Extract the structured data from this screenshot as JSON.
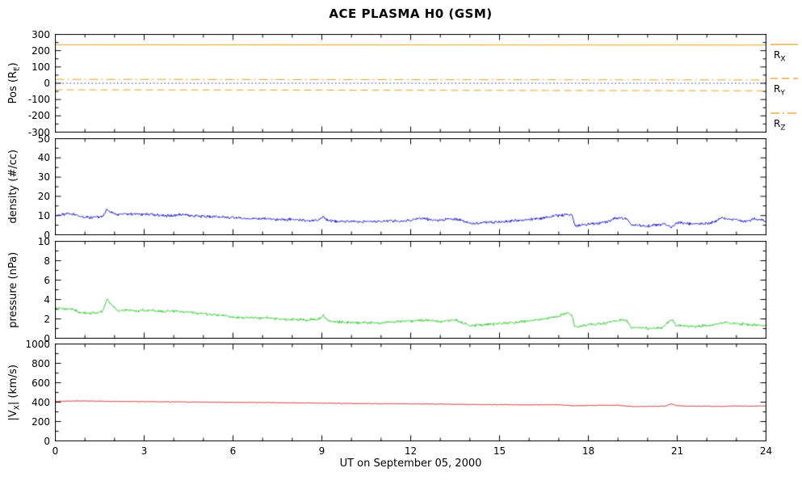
{
  "colors": {
    "background": "#FFFFFF",
    "axis": "#000000"
  },
  "chart_data": {
    "type": "line",
    "title": "ACE PLASMA H0 (GSM)",
    "x_axis": {
      "label": "UT on September 05, 2000",
      "lim": [
        0,
        24
      ],
      "ticks": [
        0,
        3,
        6,
        9,
        12,
        15,
        18,
        21,
        24
      ],
      "minor_step": 1
    },
    "legend": {
      "items": [
        {
          "label": {
            "main": "R",
            "sub": "X"
          },
          "color": "#E8A020",
          "dash": "none"
        },
        {
          "label": {
            "main": "R",
            "sub": "Y"
          },
          "color": "#E8A020",
          "dash": "9,5"
        },
        {
          "label": {
            "main": "R",
            "sub": "Z"
          },
          "color": "#E8A020",
          "dash": "11,4,2,4"
        }
      ]
    },
    "panels": [
      {
        "name": "position",
        "ylabel": {
          "pre": "Pos (R",
          "sub": "E",
          "post": ")"
        },
        "ylim": [
          -300,
          300
        ],
        "yticks": [
          -300,
          -200,
          -100,
          0,
          100,
          200,
          300
        ],
        "yminor_step": 50,
        "series": [
          {
            "name": "zero-line",
            "color": "#2222CC",
            "dash": [
              1.5,
              3
            ],
            "noise": 0,
            "points": [
              [
                0,
                0
              ],
              [
                24,
                0
              ]
            ]
          },
          {
            "name": "R_X",
            "color": "#E8A020",
            "dash": [],
            "noise": 0,
            "points": [
              [
                0,
                236
              ],
              [
                24,
                234
              ]
            ]
          },
          {
            "name": "R_Y",
            "color": "#E8A020",
            "dash": [
              9,
              5
            ],
            "noise": 0,
            "points": [
              [
                0,
                -40
              ],
              [
                24,
                -46
              ]
            ]
          },
          {
            "name": "R_Z",
            "color": "#E8A020",
            "dash": [
              11,
              4,
              2,
              4
            ],
            "noise": 0,
            "points": [
              [
                0,
                24
              ],
              [
                24,
                20
              ]
            ]
          }
        ]
      },
      {
        "name": "density",
        "ylabel": {
          "pre": "density (#/cc)",
          "sub": "",
          "post": ""
        },
        "ylim": [
          0,
          50
        ],
        "yticks": [
          0,
          10,
          20,
          30,
          40,
          50
        ],
        "yminor_step": 5,
        "series": [
          {
            "name": "proton-density",
            "color": "#2222CC",
            "dash": [],
            "noise": 0.9,
            "points": [
              [
                0,
                10
              ],
              [
                0.3,
                10.5
              ],
              [
                0.6,
                11
              ],
              [
                0.8,
                9.5
              ],
              [
                1.0,
                9
              ],
              [
                1.3,
                9
              ],
              [
                1.6,
                9.5
              ],
              [
                1.75,
                13.5
              ],
              [
                1.9,
                11.5
              ],
              [
                2.1,
                10.5
              ],
              [
                2.4,
                11
              ],
              [
                2.7,
                10.5
              ],
              [
                3.0,
                11
              ],
              [
                3.3,
                10.5
              ],
              [
                3.6,
                10
              ],
              [
                4.0,
                10
              ],
              [
                4.3,
                10.5
              ],
              [
                4.6,
                10
              ],
              [
                5.0,
                9.5
              ],
              [
                5.4,
                9.5
              ],
              [
                5.7,
                9
              ],
              [
                6.0,
                9
              ],
              [
                6.3,
                8.5
              ],
              [
                6.7,
                8.5
              ],
              [
                7.0,
                8.5
              ],
              [
                7.4,
                8
              ],
              [
                7.7,
                8
              ],
              [
                8.0,
                8
              ],
              [
                8.4,
                7.5
              ],
              [
                8.7,
                7.5
              ],
              [
                8.95,
                8
              ],
              [
                9.05,
                9.5
              ],
              [
                9.2,
                7.5
              ],
              [
                9.5,
                7
              ],
              [
                9.8,
                7
              ],
              [
                10.0,
                7
              ],
              [
                10.3,
                6.5
              ],
              [
                10.6,
                7
              ],
              [
                11.0,
                7
              ],
              [
                11.3,
                7.5
              ],
              [
                11.6,
                7
              ],
              [
                12.0,
                7.5
              ],
              [
                12.3,
                8.5
              ],
              [
                12.6,
                8
              ],
              [
                13.0,
                7.5
              ],
              [
                13.3,
                8.5
              ],
              [
                13.6,
                8
              ],
              [
                14.0,
                6
              ],
              [
                14.3,
                6
              ],
              [
                14.6,
                6.5
              ],
              [
                15.0,
                6.5
              ],
              [
                15.3,
                7
              ],
              [
                15.6,
                7.5
              ],
              [
                16.0,
                8
              ],
              [
                16.3,
                8.5
              ],
              [
                16.6,
                9
              ],
              [
                17.0,
                10
              ],
              [
                17.3,
                10.5
              ],
              [
                17.45,
                10
              ],
              [
                17.55,
                4.5
              ],
              [
                17.7,
                5
              ],
              [
                18.0,
                5.5
              ],
              [
                18.3,
                6
              ],
              [
                18.6,
                6.5
              ],
              [
                18.9,
                8.5
              ],
              [
                19.1,
                9
              ],
              [
                19.3,
                8.5
              ],
              [
                19.45,
                5
              ],
              [
                19.7,
                5
              ],
              [
                20.0,
                4.5
              ],
              [
                20.3,
                5
              ],
              [
                20.6,
                5.5
              ],
              [
                20.8,
                4
              ],
              [
                21.0,
                6.5
              ],
              [
                21.3,
                6
              ],
              [
                21.6,
                5.5
              ],
              [
                22.0,
                6
              ],
              [
                22.3,
                7
              ],
              [
                22.5,
                9
              ],
              [
                22.8,
                8
              ],
              [
                23.0,
                8
              ],
              [
                23.3,
                7
              ],
              [
                23.6,
                8.5
              ],
              [
                24,
                7
              ]
            ]
          }
        ]
      },
      {
        "name": "pressure",
        "ylabel": {
          "pre": "pressure (nPa)",
          "sub": "",
          "post": ""
        },
        "ylim": [
          0,
          10
        ],
        "yticks": [
          0,
          2,
          4,
          6,
          8,
          10
        ],
        "yminor_step": 1,
        "series": [
          {
            "name": "flow-pressure",
            "color": "#33CC33",
            "dash": [],
            "noise": 0.17,
            "points": [
              [
                0,
                3.1
              ],
              [
                0.3,
                3.0
              ],
              [
                0.6,
                3.0
              ],
              [
                0.8,
                2.7
              ],
              [
                1.0,
                2.6
              ],
              [
                1.3,
                2.6
              ],
              [
                1.6,
                2.8
              ],
              [
                1.75,
                4.1
              ],
              [
                1.9,
                3.4
              ],
              [
                2.1,
                2.9
              ],
              [
                2.4,
                2.9
              ],
              [
                2.7,
                2.8
              ],
              [
                3.0,
                2.9
              ],
              [
                3.5,
                2.8
              ],
              [
                4.0,
                2.8
              ],
              [
                4.5,
                2.7
              ],
              [
                5.0,
                2.5
              ],
              [
                5.5,
                2.4
              ],
              [
                6.0,
                2.2
              ],
              [
                6.5,
                2.1
              ],
              [
                7.0,
                2.1
              ],
              [
                7.5,
                2.0
              ],
              [
                8.0,
                1.9
              ],
              [
                8.5,
                1.9
              ],
              [
                8.95,
                2.0
              ],
              [
                9.05,
                2.4
              ],
              [
                9.2,
                1.8
              ],
              [
                9.5,
                1.7
              ],
              [
                10.0,
                1.6
              ],
              [
                10.5,
                1.6
              ],
              [
                11.0,
                1.6
              ],
              [
                11.5,
                1.7
              ],
              [
                12.0,
                1.8
              ],
              [
                12.5,
                1.9
              ],
              [
                13.0,
                1.7
              ],
              [
                13.5,
                1.9
              ],
              [
                14.0,
                1.3
              ],
              [
                14.5,
                1.4
              ],
              [
                15.0,
                1.5
              ],
              [
                15.5,
                1.6
              ],
              [
                16.0,
                1.8
              ],
              [
                16.5,
                2.0
              ],
              [
                17.0,
                2.3
              ],
              [
                17.3,
                2.6
              ],
              [
                17.45,
                2.4
              ],
              [
                17.55,
                1.1
              ],
              [
                17.8,
                1.3
              ],
              [
                18.0,
                1.4
              ],
              [
                18.5,
                1.5
              ],
              [
                18.9,
                1.8
              ],
              [
                19.1,
                1.9
              ],
              [
                19.3,
                1.8
              ],
              [
                19.45,
                1.1
              ],
              [
                19.7,
                1.1
              ],
              [
                20.0,
                1.0
              ],
              [
                20.5,
                1.1
              ],
              [
                20.8,
                1.9
              ],
              [
                21.0,
                1.3
              ],
              [
                21.5,
                1.2
              ],
              [
                22.0,
                1.3
              ],
              [
                22.5,
                1.6
              ],
              [
                23.0,
                1.5
              ],
              [
                23.5,
                1.4
              ],
              [
                24,
                1.3
              ]
            ]
          }
        ]
      },
      {
        "name": "velocity",
        "ylabel": {
          "pre": "|V",
          "sub": "X",
          "post": "| (km/s)"
        },
        "ylim": [
          0,
          1000
        ],
        "yticks": [
          0,
          200,
          400,
          600,
          800,
          1000
        ],
        "yminor_step": 100,
        "series": [
          {
            "name": "vx-speed",
            "color": "#CC2222",
            "dash": [],
            "noise": 4,
            "points": [
              [
                0,
                410
              ],
              [
                1,
                412
              ],
              [
                2,
                408
              ],
              [
                3,
                405
              ],
              [
                4,
                403
              ],
              [
                5,
                400
              ],
              [
                6,
                398
              ],
              [
                7,
                396
              ],
              [
                8,
                393
              ],
              [
                9,
                390
              ],
              [
                10,
                386
              ],
              [
                11,
                384
              ],
              [
                12,
                382
              ],
              [
                13,
                380
              ],
              [
                14,
                376
              ],
              [
                15,
                374
              ],
              [
                16,
                372
              ],
              [
                17,
                374
              ],
              [
                17.5,
                362
              ],
              [
                18,
                366
              ],
              [
                18.5,
                368
              ],
              [
                19,
                368
              ],
              [
                19.5,
                354
              ],
              [
                20,
                356
              ],
              [
                20.6,
                358
              ],
              [
                20.8,
                382
              ],
              [
                21,
                362
              ],
              [
                21.5,
                358
              ],
              [
                22,
                358
              ],
              [
                22.5,
                356
              ],
              [
                23,
                360
              ],
              [
                23.5,
                358
              ],
              [
                24,
                362
              ]
            ]
          }
        ]
      }
    ]
  }
}
